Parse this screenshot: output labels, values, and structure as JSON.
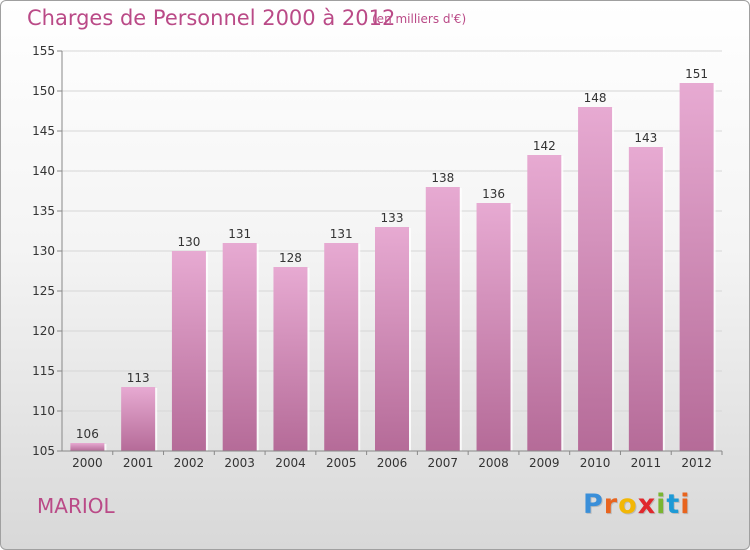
{
  "chart_data": {
    "type": "bar",
    "title": "Charges de Personnel 2000 à 2012",
    "subtitle": "(en milliers d'€)",
    "categories": [
      "2000",
      "2001",
      "2002",
      "2003",
      "2004",
      "2005",
      "2006",
      "2007",
      "2008",
      "2009",
      "2010",
      "2011",
      "2012"
    ],
    "values": [
      106,
      113,
      130,
      131,
      128,
      131,
      133,
      138,
      136,
      142,
      148,
      143,
      151
    ],
    "ylim": [
      105,
      155
    ],
    "yticks": [
      105,
      110,
      115,
      120,
      125,
      130,
      135,
      140,
      145,
      150,
      155
    ],
    "grid": true,
    "bar_color": "#c97fae",
    "xlabel": "",
    "ylabel": ""
  },
  "footer": {
    "location": "MARIOL",
    "logo_letters": [
      "P",
      "r",
      "o",
      "x",
      "i",
      "t",
      "i"
    ],
    "logo_colors": [
      "#3a8fd9",
      "#e8641e",
      "#f2b705",
      "#e0282d",
      "#7ab531",
      "#1e9ad6",
      "#e8641e"
    ]
  }
}
